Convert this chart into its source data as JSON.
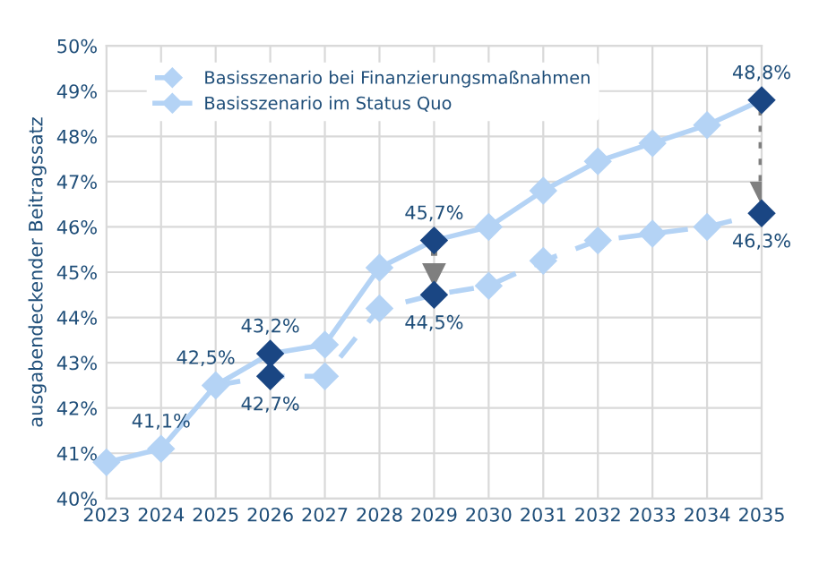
{
  "chart_data": {
    "type": "line",
    "ylabel": "ausgabendeckender Beitragssatz",
    "categories": [
      "2023",
      "2024",
      "2025",
      "2026",
      "2027",
      "2028",
      "2029",
      "2030",
      "2031",
      "2032",
      "2033",
      "2034",
      "2035"
    ],
    "series": [
      {
        "name": "Basisszenario bei Finanzierungsmaßnahmen",
        "color": "#b4d3f5",
        "line_style": "dashed",
        "values": [
          null,
          null,
          42.5,
          42.7,
          42.7,
          44.2,
          44.5,
          44.7,
          45.25,
          45.7,
          45.85,
          46.0,
          46.3
        ],
        "colors": [
          "#b4d3f5",
          "#b4d3f5",
          "#b4d3f5",
          "#1a4683",
          "#b4d3f5",
          "#b4d3f5",
          "#1a4683",
          "#b4d3f5",
          "#b4d3f5",
          "#b4d3f5",
          "#b4d3f5",
          "#b4d3f5",
          "#1a4683"
        ],
        "value_labels": [
          null,
          null,
          null,
          "42,7%",
          null,
          null,
          "44,5%",
          null,
          null,
          null,
          null,
          null,
          "46,3%"
        ]
      },
      {
        "name": "Basisszenario im Status Quo",
        "color": "#b4d3f5",
        "line_style": "solid",
        "values": [
          40.8,
          41.1,
          42.5,
          43.2,
          43.4,
          45.1,
          45.7,
          46.0,
          46.8,
          47.45,
          47.85,
          48.25,
          48.8
        ],
        "colors": [
          "#b4d3f5",
          "#b4d3f5",
          "#b4d3f5",
          "#1a4683",
          "#b4d3f5",
          "#b4d3f5",
          "#1a4683",
          "#b4d3f5",
          "#b4d3f5",
          "#b4d3f5",
          "#b4d3f5",
          "#b4d3f5",
          "#1a4683"
        ],
        "value_labels": [
          null,
          "41,1%",
          "42,5%",
          "43,2%",
          null,
          null,
          "45,7%",
          null,
          null,
          null,
          null,
          null,
          "48,8%"
        ]
      }
    ],
    "ylim": [
      40,
      50
    ],
    "yticks": [
      {
        "value": 40,
        "label": "40%"
      },
      {
        "value": 41,
        "label": "41%"
      },
      {
        "value": 42,
        "label": "42%"
      },
      {
        "value": 43,
        "label": "43%"
      },
      {
        "value": 44,
        "label": "44%"
      },
      {
        "value": 45,
        "label": "45%"
      },
      {
        "value": 46,
        "label": "46%"
      },
      {
        "value": 47,
        "label": "47%"
      },
      {
        "value": 48,
        "label": "48%"
      },
      {
        "value": 49,
        "label": "49%"
      },
      {
        "value": 50,
        "label": "50%"
      }
    ],
    "grid": true,
    "legend": "top left",
    "marker": "diamond"
  }
}
